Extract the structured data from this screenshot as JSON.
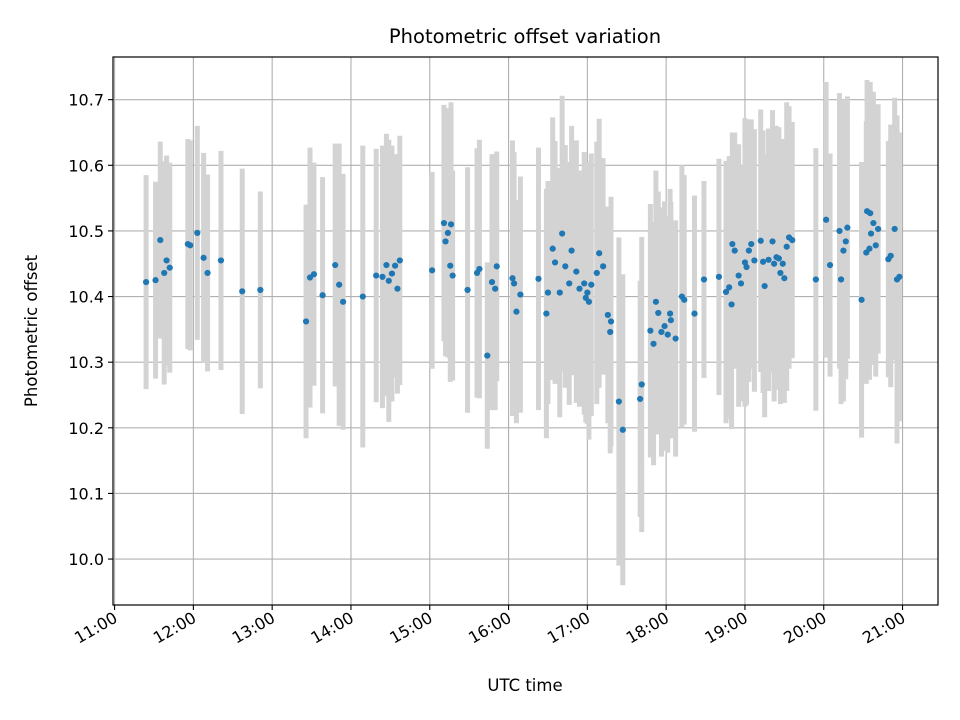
{
  "chart_data": {
    "type": "scatter",
    "title": "Photometric offset variation",
    "xlabel": "UTC time",
    "ylabel": "Photometric offset",
    "grid": true,
    "legend": "none",
    "x_unit": "hours UTC",
    "xlim": [
      10.98,
      21.45
    ],
    "ylim": [
      9.93,
      10.765
    ],
    "xticks": [
      11,
      12,
      13,
      14,
      15,
      16,
      17,
      18,
      19,
      20,
      21
    ],
    "xtick_labels": [
      "11:00",
      "12:00",
      "13:00",
      "14:00",
      "15:00",
      "16:00",
      "17:00",
      "18:00",
      "19:00",
      "20:00",
      "21:00"
    ],
    "yticks": [
      10.0,
      10.1,
      10.2,
      10.3,
      10.4,
      10.5,
      10.6,
      10.7
    ],
    "ytick_labels": [
      "10.0",
      "10.1",
      "10.2",
      "10.3",
      "10.4",
      "10.5",
      "10.6",
      "10.7"
    ],
    "colors": {
      "points": "#1f77b4",
      "errorbars": "#d3d3d3",
      "grid": "#b0b0b0"
    },
    "series": [
      {
        "name": "Photometric offset",
        "error_half_width": 0.16,
        "points": [
          [
            11.4,
            10.422,
            0.163
          ],
          [
            11.52,
            10.425,
            0.15
          ],
          [
            11.58,
            10.486,
            0.15
          ],
          [
            11.63,
            10.436,
            0.17
          ],
          [
            11.66,
            10.455,
            0.16
          ],
          [
            11.7,
            10.444,
            0.16
          ],
          [
            11.93,
            10.48,
            0.16
          ],
          [
            11.96,
            10.478,
            0.16
          ],
          [
            12.05,
            10.497,
            0.163
          ],
          [
            12.13,
            10.459,
            0.16
          ],
          [
            12.18,
            10.436,
            0.15
          ],
          [
            12.35,
            10.455,
            0.167
          ],
          [
            12.62,
            10.408,
            0.187
          ],
          [
            12.85,
            10.41,
            0.15
          ],
          [
            13.43,
            10.362,
            0.178
          ],
          [
            13.48,
            10.429,
            0.198
          ],
          [
            13.53,
            10.434,
            0.17
          ],
          [
            13.64,
            10.402,
            0.18
          ],
          [
            13.8,
            10.448,
            0.185
          ],
          [
            13.85,
            10.418,
            0.215
          ],
          [
            13.9,
            10.392,
            0.195
          ],
          [
            14.15,
            10.4,
            0.23
          ],
          [
            14.32,
            10.432,
            0.193
          ],
          [
            14.4,
            10.43,
            0.2
          ],
          [
            14.45,
            10.448,
            0.2
          ],
          [
            14.48,
            10.424,
            0.215
          ],
          [
            14.52,
            10.435,
            0.195
          ],
          [
            14.56,
            10.447,
            0.17
          ],
          [
            14.59,
            10.412,
            0.16
          ],
          [
            14.62,
            10.455,
            0.19
          ],
          [
            15.03,
            10.44,
            0.15
          ],
          [
            15.18,
            10.512,
            0.18
          ],
          [
            15.2,
            10.484,
            0.175
          ],
          [
            15.23,
            10.497,
            0.19
          ],
          [
            15.26,
            10.447,
            0.177
          ],
          [
            15.27,
            10.51,
            0.186
          ],
          [
            15.29,
            10.432,
            0.16
          ],
          [
            15.48,
            10.41,
            0.187
          ],
          [
            15.6,
            10.436,
            0.19
          ],
          [
            15.63,
            10.442,
            0.197
          ],
          [
            15.73,
            10.31,
            0.142
          ],
          [
            15.79,
            10.422,
            0.195
          ],
          [
            15.83,
            10.412,
            0.185
          ],
          [
            15.85,
            10.446,
            0.175
          ],
          [
            16.05,
            10.428,
            0.21
          ],
          [
            16.07,
            10.42,
            0.2
          ],
          [
            16.1,
            10.377,
            0.17
          ],
          [
            16.15,
            10.403,
            0.18
          ],
          [
            16.38,
            10.427,
            0.2
          ],
          [
            16.48,
            10.374,
            0.19
          ],
          [
            16.5,
            10.406,
            0.17
          ],
          [
            16.56,
            10.473,
            0.2
          ],
          [
            16.59,
            10.452,
            0.185
          ],
          [
            16.65,
            10.406,
            0.19
          ],
          [
            16.68,
            10.496,
            0.21
          ],
          [
            16.72,
            10.446,
            0.185
          ],
          [
            16.77,
            10.42,
            0.185
          ],
          [
            16.8,
            10.47,
            0.19
          ],
          [
            16.86,
            10.438,
            0.2
          ],
          [
            16.9,
            10.412,
            0.18
          ],
          [
            16.96,
            10.42,
            0.2
          ],
          [
            16.98,
            10.398,
            0.19
          ],
          [
            17.0,
            10.406,
            0.2
          ],
          [
            17.02,
            10.392,
            0.21
          ],
          [
            17.05,
            10.418,
            0.2
          ],
          [
            17.12,
            10.436,
            0.2
          ],
          [
            17.15,
            10.466,
            0.205
          ],
          [
            17.2,
            10.446,
            0.165
          ],
          [
            17.26,
            10.372,
            0.165
          ],
          [
            17.29,
            10.346,
            0.185
          ],
          [
            17.3,
            10.362,
            0.19
          ],
          [
            17.4,
            10.24,
            0.25
          ],
          [
            17.45,
            10.197,
            0.237
          ],
          [
            17.67,
            10.244,
            0.18
          ],
          [
            17.69,
            10.266,
            0.225
          ],
          [
            17.8,
            10.348,
            0.193
          ],
          [
            17.84,
            10.328,
            0.185
          ],
          [
            17.87,
            10.392,
            0.2
          ],
          [
            17.9,
            10.375,
            0.185
          ],
          [
            17.94,
            10.346,
            0.19
          ],
          [
            17.98,
            10.355,
            0.19
          ],
          [
            18.02,
            10.342,
            0.18
          ],
          [
            18.05,
            10.374,
            0.19
          ],
          [
            18.06,
            10.364,
            0.18
          ],
          [
            18.12,
            10.336,
            0.18
          ],
          [
            18.2,
            10.4,
            0.2
          ],
          [
            18.23,
            10.395,
            0.19
          ],
          [
            18.36,
            10.374,
            0.18
          ],
          [
            18.48,
            10.426,
            0.15
          ],
          [
            18.67,
            10.43,
            0.18
          ],
          [
            18.76,
            10.407,
            0.2
          ],
          [
            18.8,
            10.414,
            0.2
          ],
          [
            18.83,
            10.388,
            0.19
          ],
          [
            18.84,
            10.48,
            0.17
          ],
          [
            18.87,
            10.47,
            0.18
          ],
          [
            18.92,
            10.432,
            0.2
          ],
          [
            18.95,
            10.42,
            0.18
          ],
          [
            19.0,
            10.452,
            0.22
          ],
          [
            19.02,
            10.445,
            0.21
          ],
          [
            19.05,
            10.47,
            0.2
          ],
          [
            19.08,
            10.48,
            0.19
          ],
          [
            19.12,
            10.455,
            0.2
          ],
          [
            19.2,
            10.485,
            0.2
          ],
          [
            19.23,
            10.453,
            0.2
          ],
          [
            19.25,
            10.416,
            0.2
          ],
          [
            19.3,
            10.456,
            0.2
          ],
          [
            19.35,
            10.484,
            0.2
          ],
          [
            19.37,
            10.45,
            0.21
          ],
          [
            19.4,
            10.46,
            0.2
          ],
          [
            19.43,
            10.458,
            0.2
          ],
          [
            19.45,
            10.436,
            0.2
          ],
          [
            19.48,
            10.45,
            0.19
          ],
          [
            19.5,
            10.428,
            0.19
          ],
          [
            19.53,
            10.476,
            0.22
          ],
          [
            19.56,
            10.49,
            0.2
          ],
          [
            19.6,
            10.486,
            0.18
          ],
          [
            19.9,
            10.426,
            0.2
          ],
          [
            20.03,
            10.517,
            0.21
          ],
          [
            20.08,
            10.448,
            0.17
          ],
          [
            20.2,
            10.5,
            0.21
          ],
          [
            20.22,
            10.426,
            0.19
          ],
          [
            20.25,
            10.47,
            0.23
          ],
          [
            20.28,
            10.484,
            0.21
          ],
          [
            20.3,
            10.505,
            0.2
          ],
          [
            20.48,
            10.395,
            0.21
          ],
          [
            20.54,
            10.467,
            0.2
          ],
          [
            20.55,
            10.53,
            0.2
          ],
          [
            20.58,
            10.473,
            0.2
          ],
          [
            20.59,
            10.527,
            0.2
          ],
          [
            20.6,
            10.496,
            0.2
          ],
          [
            20.63,
            10.512,
            0.2
          ],
          [
            20.66,
            10.478,
            0.2
          ],
          [
            20.69,
            10.503,
            0.19
          ],
          [
            20.82,
            10.457,
            0.18
          ],
          [
            20.85,
            10.462,
            0.2
          ],
          [
            20.9,
            10.503,
            0.2
          ],
          [
            20.93,
            10.426,
            0.25
          ],
          [
            20.96,
            10.43,
            0.22
          ]
        ]
      }
    ]
  }
}
